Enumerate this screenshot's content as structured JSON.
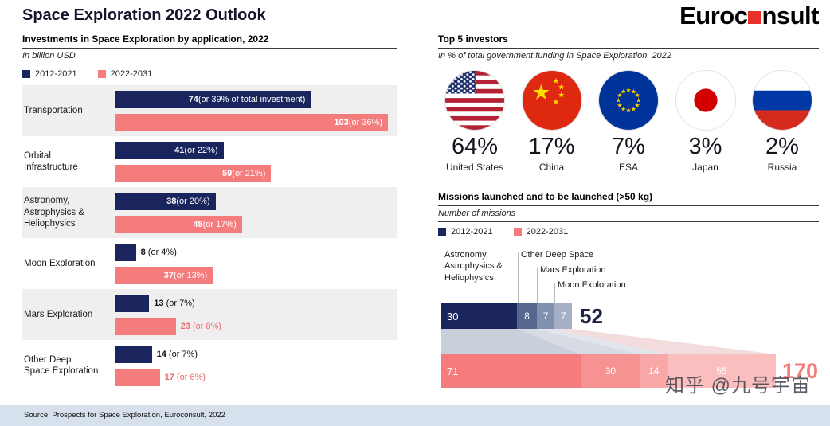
{
  "page": {
    "title": "Space Exploration 2022 Outlook",
    "logo_part1": "Euroc",
    "logo_part2": "nsult",
    "watermark": "知乎 @九号宇宙",
    "source": "Source: Prospects for Space Exploration, Euroconsult, 2022"
  },
  "colors": {
    "navy": "#19255c",
    "pink": "#f57c7c",
    "logo_red": "#e8312a",
    "footer_strip": "#d7e1ee"
  },
  "investments": {
    "title": "Investments in Space Exploration by application, 2022",
    "subtitle": "In billion USD",
    "legend": [
      {
        "label": "2012-2021",
        "color": "#19255c"
      },
      {
        "label": "2022-2031",
        "color": "#f57c7c"
      }
    ],
    "rows": [
      {
        "label": "Transportation",
        "past": {
          "value": 74,
          "suffix": " (or 39% of total investment)"
        },
        "future": {
          "value": 103,
          "suffix": " (or 36%)"
        }
      },
      {
        "label": "Orbital Infrastructure",
        "past": {
          "value": 41,
          "suffix": " (or 22%)"
        },
        "future": {
          "value": 59,
          "suffix": " (or 21%)"
        }
      },
      {
        "label": "Astronomy, Astrophysics & Heliophysics",
        "past": {
          "value": 38,
          "suffix": " (or 20%)"
        },
        "future": {
          "value": 48,
          "suffix": " (or 17%)"
        }
      },
      {
        "label": "Moon Exploration",
        "past": {
          "value": 8,
          "suffix": " (or 4%)"
        },
        "future": {
          "value": 37,
          "suffix": " (or 13%)"
        }
      },
      {
        "label": "Mars Exploration",
        "past": {
          "value": 13,
          "suffix": " (or 7%)"
        },
        "future": {
          "value": 23,
          "suffix": " (or 8%)"
        }
      },
      {
        "label": "Other Deep Space Exploration",
        "past": {
          "value": 14,
          "suffix": " (or 7%)"
        },
        "future": {
          "value": 17,
          "suffix": " (or 6%)"
        }
      }
    ]
  },
  "investors": {
    "title": "Top 5 investors",
    "subtitle": "In % of total government funding in Space Exploration, 2022",
    "items": [
      {
        "pct": "64%",
        "country": "United States"
      },
      {
        "pct": "17%",
        "country": "China"
      },
      {
        "pct": "7%",
        "country": "ESA"
      },
      {
        "pct": "3%",
        "country": "Japan"
      },
      {
        "pct": "2%",
        "country": "Russia"
      }
    ]
  },
  "missions": {
    "title": "Missions launched and to be launched (>50 kg)",
    "subtitle": "Number of missions",
    "legend": [
      {
        "label": "2012-2021",
        "color": "#19255c"
      },
      {
        "label": "2022-2031",
        "color": "#f57c7c"
      }
    ],
    "labels": {
      "astro": "Astronomy, Astrophysics & Heliophysics",
      "other": "Other Deep Space",
      "mars": "Mars Exploration",
      "moon": "Moon Exploration"
    },
    "past": {
      "segments": [
        30,
        8,
        7,
        7
      ],
      "total": "52"
    },
    "future": {
      "segments": [
        71,
        30,
        14,
        55
      ],
      "total": "170"
    }
  },
  "chart_data": [
    {
      "type": "bar",
      "orientation": "horizontal",
      "title": "Investments in Space Exploration by application, 2022",
      "xlabel": "In billion USD",
      "categories": [
        "Transportation",
        "Orbital Infrastructure",
        "Astronomy, Astrophysics & Heliophysics",
        "Moon Exploration",
        "Mars Exploration",
        "Other Deep Space Exploration"
      ],
      "series": [
        {
          "name": "2012-2021",
          "color": "#19255c",
          "values": [
            74,
            41,
            38,
            8,
            13,
            14
          ],
          "pct_of_total": [
            "39%",
            "22%",
            "20%",
            "4%",
            "7%",
            "7%"
          ]
        },
        {
          "name": "2022-2031",
          "color": "#f57c7c",
          "values": [
            103,
            59,
            48,
            37,
            23,
            17
          ],
          "pct_of_total": [
            "36%",
            "21%",
            "17%",
            "13%",
            "8%",
            "6%"
          ]
        }
      ],
      "xlim": [
        0,
        110
      ],
      "grid": false,
      "legend_position": "top"
    },
    {
      "type": "pie",
      "title": "Top 5 investors",
      "subtitle": "In % of total government funding in Space Exploration, 2022",
      "categories": [
        "United States",
        "China",
        "ESA",
        "Japan",
        "Russia"
      ],
      "values": [
        64,
        17,
        7,
        3,
        2
      ],
      "unit": "%",
      "display": "flag-pictogram"
    },
    {
      "type": "bar",
      "subtype": "stacked-funnel",
      "title": "Missions launched and to be launched (>50 kg)",
      "ylabel": "Number of missions",
      "categories": [
        "Astronomy, Astrophysics & Heliophysics",
        "Other Deep Space",
        "Mars Exploration",
        "Moon Exploration"
      ],
      "series": [
        {
          "name": "2012-2021",
          "color": "#19255c",
          "values": [
            30,
            8,
            7,
            7
          ],
          "total": 52
        },
        {
          "name": "2022-2031",
          "color": "#f57c7c",
          "values": [
            71,
            30,
            14,
            55
          ],
          "total": 170
        }
      ],
      "legend_position": "top"
    }
  ]
}
